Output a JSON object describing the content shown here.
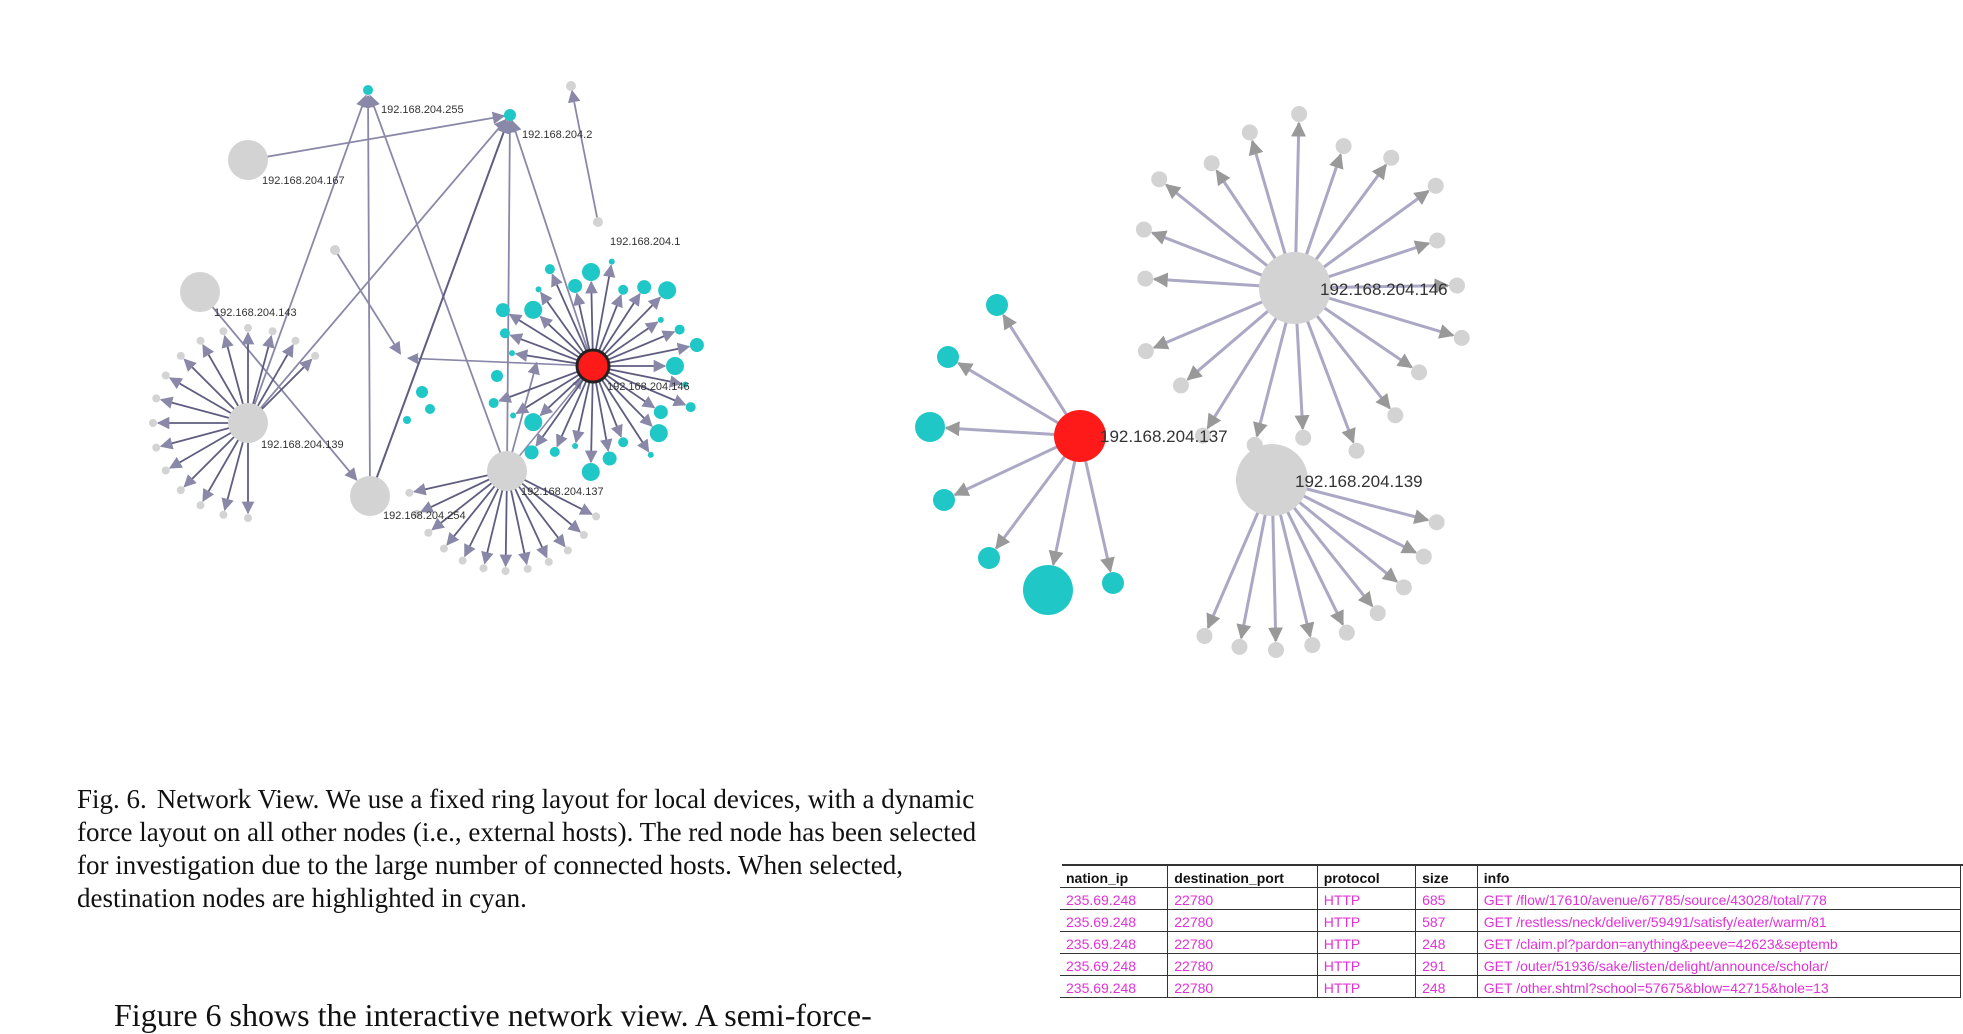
{
  "colors": {
    "selected": "#ff1a1a",
    "destination": "#1fc7c7",
    "host": "#d3d3d3",
    "edge": "#8a88a8",
    "edge_dark": "#5f5d80",
    "table_text": "#e032d6"
  },
  "left_network": {
    "labels": {
      "n255": "192.168.204.255",
      "n2": "192.168.204.2",
      "n167": "192.168.204.167",
      "n1": "192.168.204.1",
      "n143": "192.168.204.143",
      "n146": "192.168.204.146",
      "n139": "192.168.204.139",
      "n137": "192.168.204.137",
      "n254": "192.168.204.254"
    }
  },
  "right_network": {
    "labels": {
      "n146": "192.168.204.146",
      "n137": "192.168.204.137",
      "n139": "192.168.204.139"
    }
  },
  "caption": {
    "fig_no": "Fig. 6.",
    "text": "Network View. We use a fixed ring layout for local devices, with a dynamic force layout on all other nodes (i.e., external hosts). The red node has been selected for investigation due to the large number of connected hosts. When selected, destination nodes are highlighted in cyan."
  },
  "body_text": "Figure 6 shows the interactive network view. A semi-force-",
  "table": {
    "headers": [
      "nation_ip",
      "destination_port",
      "protocol",
      "size",
      "info"
    ],
    "rows": [
      [
        "235.69.248",
        "22780",
        "HTTP",
        "685",
        "GET /flow/17610/avenue/67785/source/43028/total/778"
      ],
      [
        "235.69.248",
        "22780",
        "HTTP",
        "587",
        "GET /restless/neck/deliver/59491/satisfy/eater/warm/81"
      ],
      [
        "235.69.248",
        "22780",
        "HTTP",
        "248",
        "GET /claim.pl?pardon=anything&peeve=42623&septemb"
      ],
      [
        "235.69.248",
        "22780",
        "HTTP",
        "291",
        "GET /outer/51936/sake/listen/delight/announce/scholar/"
      ],
      [
        "235.69.248",
        "22780",
        "HTTP",
        "248",
        "GET /other.shtml?school=57675&blow=42715&hole=13"
      ]
    ]
  }
}
